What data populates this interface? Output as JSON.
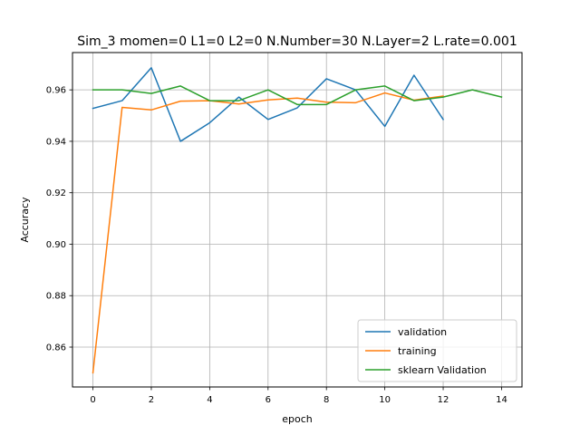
{
  "chart_data": {
    "type": "line",
    "title": "Sim_3 momen=0 L1=0 L2=0 N.Number=30 N.Layer=2 L.rate=0.001",
    "xlabel": "epoch",
    "ylabel": "Accuracy",
    "xlim": [
      -0.7,
      14.7
    ],
    "ylim": [
      0.8445,
      0.9745
    ],
    "xticks": [
      0,
      2,
      4,
      6,
      8,
      10,
      12,
      14
    ],
    "yticks": [
      0.86,
      0.88,
      0.9,
      0.92,
      0.94,
      0.96
    ],
    "ytick_labels": [
      "0.86",
      "0.88",
      "0.90",
      "0.92",
      "0.94",
      "0.96"
    ],
    "grid": true,
    "legend_position": "lower-right",
    "series": [
      {
        "name": "validation",
        "color": "#1f77b4",
        "x": [
          0,
          1,
          2,
          3,
          4,
          5,
          6,
          7,
          8,
          9,
          10,
          11,
          12
        ],
        "y": [
          0.9528,
          0.9558,
          0.9686,
          0.94,
          0.9472,
          0.9572,
          0.9485,
          0.953,
          0.9643,
          0.96,
          0.9458,
          0.9657,
          0.9485
        ]
      },
      {
        "name": "training",
        "color": "#ff7f0e",
        "x": [
          0,
          1,
          2,
          3,
          4,
          5,
          6,
          7,
          8,
          9,
          10,
          11,
          12
        ],
        "y": [
          0.85,
          0.9532,
          0.9522,
          0.9556,
          0.9558,
          0.9545,
          0.9561,
          0.9568,
          0.9552,
          0.955,
          0.9588,
          0.956,
          0.9576
        ]
      },
      {
        "name": "sklearn Validation",
        "color": "#2ca02c",
        "x": [
          0,
          1,
          2,
          3,
          4,
          5,
          6,
          7,
          8,
          9,
          10,
          11,
          12,
          13,
          14
        ],
        "y": [
          0.96,
          0.96,
          0.9586,
          0.9615,
          0.9558,
          0.9558,
          0.96,
          0.9543,
          0.9543,
          0.96,
          0.9615,
          0.9558,
          0.9572,
          0.96,
          0.9572
        ]
      }
    ]
  }
}
